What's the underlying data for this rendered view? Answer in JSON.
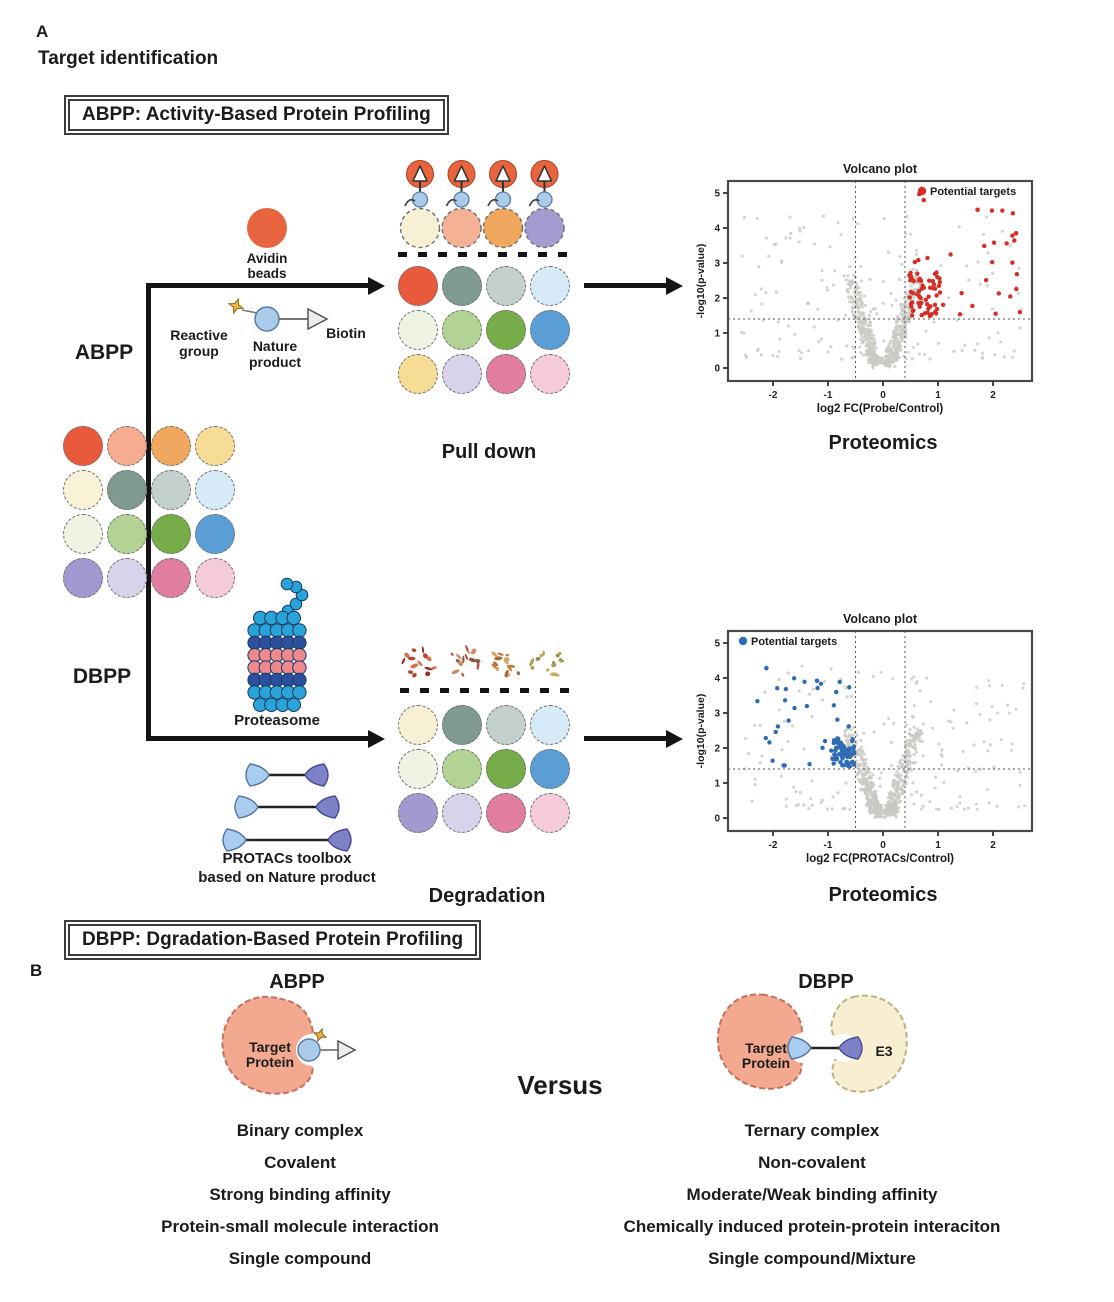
{
  "colors": {
    "text": "#1b1b1b",
    "avidin_bead": "#e8643f",
    "probe_blue": "#aacbe9",
    "biotin_tri": "#ececec",
    "star": "#eab43e",
    "gray_dot": "#c9c9c4",
    "red": "#d42f26",
    "blue": "#2e6db4",
    "proteasome": {
      "cyan": "#2aa3d8",
      "dark": "#2c4f9e",
      "pink": "#f0898d",
      "stroke": "#173b66"
    },
    "protac": {
      "left": "#a9cdee",
      "left_stroke": "#54749c",
      "right": "#7d81c6",
      "right_stroke": "#474b94"
    },
    "blob_salmon": "#f2a990",
    "blob_salmon_stroke": "#c4705e",
    "blob_cream": "#f8efd2",
    "blob_cream_stroke": "#bfb083"
  },
  "panel_a": {
    "label": "A",
    "section_title": "Target identification",
    "abpp_box": "ABPP: Activity-Based Protein Profiling",
    "dbpp_box": "DBPP: Dgradation-Based Protein Profiling",
    "branch_abpp": "ABPP",
    "branch_dbpp": "DBPP",
    "avidin_beads": "Avidin beads",
    "reactive_group": "Reactive group",
    "nature_product": "Nature product",
    "biotin": "Biotin",
    "pull_down": "Pull down",
    "proteomics_top": "Proteomics",
    "proteomics_bottom": "Proteomics",
    "proteasome": "Proteasome",
    "protacs_line1": "PROTACs toolbox",
    "protacs_line2": "based on Nature product",
    "degradation": "Degradation"
  },
  "mixture_grid": [
    [
      "#e9593b",
      "#f6ac91",
      "#f2a75f",
      "#f7dc96"
    ],
    [
      "#faf2d7",
      "#7f9b90",
      "#c4d0ce",
      "#d7eaf7"
    ],
    [
      "#eff3e4",
      "#b2d394",
      "#76ad49",
      "#5b9ed6"
    ],
    [
      "#a19ad0",
      "#d8d3eb",
      "#e27da2",
      "#f5cadb"
    ]
  ],
  "pulldown": {
    "captured_proteins": [
      "#f8f0d5",
      "#f4b195",
      "#f2a75f",
      "#a49cd1"
    ],
    "grid": [
      [
        "#e9593b",
        "#7f9b90",
        "#c4d0ce",
        "#d7eaf7"
      ],
      [
        "#eff3e4",
        "#b2d394",
        "#76ad49",
        "#5b9ed6"
      ],
      [
        "#f7dc96",
        "#d8d3eb",
        "#e27da2",
        "#f5cadb"
      ]
    ]
  },
  "degradation_grid": [
    [
      "#f8f0d5",
      "#7f9b90",
      "#c4d0ce",
      "#d7eaf7"
    ],
    [
      "#eff3e4",
      "#b2d394",
      "#76ad49",
      "#5b9ed6"
    ],
    [
      "#a19ad0",
      "#d8d3eb",
      "#e27da2",
      "#f5cadb"
    ]
  ],
  "debris_palettes": [
    [
      "#bb4530",
      "#d4714f",
      "#93311f"
    ],
    [
      "#bb5340",
      "#cf8a62",
      "#8a5a3a"
    ],
    [
      "#c77f3e",
      "#d9a468",
      "#a5683a"
    ],
    [
      "#c3a95b",
      "#a9a054",
      "#8f8a4f"
    ]
  ],
  "proteasome_rows": [
    {
      "n": 4,
      "c": "cyan"
    },
    {
      "n": 5,
      "c": "cyan"
    },
    {
      "n": 5,
      "c": "dark"
    },
    {
      "n": 5,
      "c": "pink"
    },
    {
      "n": 5,
      "c": "pink"
    },
    {
      "n": 5,
      "c": "dark"
    },
    {
      "n": 5,
      "c": "cyan"
    },
    {
      "n": 4,
      "c": "cyan"
    }
  ],
  "proteasome_tail": [
    [
      63,
      33
    ],
    [
      71,
      26
    ],
    [
      77,
      17
    ],
    [
      71,
      9
    ],
    [
      62,
      6
    ]
  ],
  "protac_toolbox": {
    "half_lengths": [
      28,
      39,
      51
    ]
  },
  "chart_data": [
    {
      "type": "scatter",
      "title": "Volcano plot",
      "xlabel": "log2 FC(Probe/Control)",
      "ylabel": "-log10(p-value)",
      "xlim": [
        -2.8,
        2.75
      ],
      "ylim": [
        -0.35,
        5.35
      ],
      "x_ticks": [
        -2,
        -1,
        0,
        1,
        2
      ],
      "y_ticks": [
        0,
        1,
        2,
        3,
        4,
        5
      ],
      "vlines": [
        -0.5,
        0.4
      ],
      "hline": 1.4,
      "grid": false,
      "legend": {
        "label": "Potential targets",
        "position": "top-right"
      },
      "seed": 7,
      "background": {
        "color": "#c9c9c4",
        "n_wing": 540,
        "n_sparse": 170
      },
      "hits": {
        "name": "Potential targets",
        "color": "#d42f26",
        "side": 1,
        "n": 86,
        "dense": {
          "frac": 0.58,
          "x": [
            0.46,
            1.05
          ],
          "y": [
            1.45,
            2.75
          ]
        },
        "spread": {
          "x": [
            0.5,
            2.5
          ],
          "y": [
            1.5,
            4.85
          ]
        }
      },
      "extra_points": [
        [
          0.66,
          4.97
        ],
        [
          0.74,
          4.8
        ],
        [
          1.72,
          4.52
        ],
        [
          2.42,
          3.85
        ]
      ]
    },
    {
      "type": "scatter",
      "title": "Volcano plot",
      "xlabel": "log2 FC(PROTACs/Control)",
      "ylabel": "-log10(p-value)",
      "xlim": [
        -2.8,
        2.75
      ],
      "ylim": [
        -0.35,
        5.35
      ],
      "x_ticks": [
        -2,
        -1,
        0,
        1,
        2
      ],
      "y_ticks": [
        0,
        1,
        2,
        3,
        4,
        5
      ],
      "vlines": [
        -0.5,
        0.4
      ],
      "hline": 1.4,
      "grid": false,
      "legend": {
        "label": "Potential targets",
        "position": "top-left"
      },
      "seed": 13,
      "background": {
        "color": "#c9c9c4",
        "n_wing": 540,
        "n_sparse": 170
      },
      "hits": {
        "name": "Potential targets",
        "color": "#2e6db4",
        "side": -1,
        "n": 95,
        "dense": {
          "frac": 0.62,
          "x": [
            0.5,
            0.95
          ],
          "y": [
            1.45,
            2.3
          ]
        },
        "spread": {
          "x": [
            0.5,
            2.3
          ],
          "y": [
            1.5,
            4.0
          ]
        }
      },
      "extra_points": [
        [
          -2.12,
          4.28
        ],
        [
          -1.2,
          3.92
        ],
        [
          -0.85,
          3.6
        ]
      ]
    }
  ],
  "panel_b": {
    "label": "B",
    "left_heading": "ABPP",
    "right_heading": "DBPP",
    "versus": "Versus",
    "target_protein": "Target Protein",
    "e3": "E3",
    "left_items": [
      "Binary complex",
      "Covalent",
      "Strong binding affinity",
      "Protein-small molecule interaction",
      "Single compound"
    ],
    "right_items": [
      "Ternary complex",
      "Non-covalent",
      "Moderate/Weak binding affinity",
      "Chemically induced protein-protein interaciton",
      "Single compound/Mixture"
    ]
  }
}
